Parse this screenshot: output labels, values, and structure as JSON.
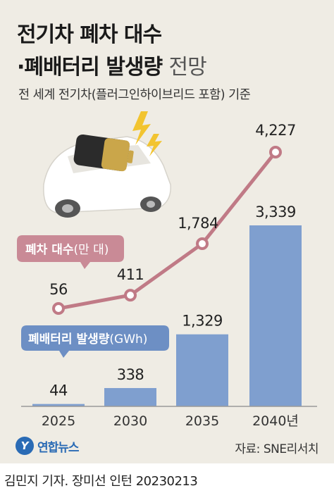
{
  "title_line1": "전기차 폐차 대수",
  "title_line2_bold": "·폐배터리 발생량",
  "title_line2_light": "전망",
  "subtitle": "전 세계 전기차(플러그인하이브리드 포함) 기준",
  "chart_data": {
    "type": "bar+line",
    "categories": [
      "2025",
      "2030",
      "2035",
      "2040년"
    ],
    "series": [
      {
        "name": "폐배터리 발생량(GWh)",
        "type": "bar",
        "values": [
          44,
          338,
          1329,
          3339
        ],
        "labels": [
          "44",
          "338",
          "1,329",
          "3,339"
        ],
        "color": "#7f9fcf"
      },
      {
        "name": "폐차 대수(만 대)",
        "type": "line",
        "values": [
          56,
          411,
          1784,
          4227
        ],
        "labels": [
          "56",
          "411",
          "1,784",
          "4,227"
        ],
        "color": "#c07a86"
      }
    ],
    "legend_line": {
      "bold": "폐차 대수",
      "light": "(만 대)"
    },
    "legend_bar": {
      "bold": "폐배터리 발생량",
      "light": "(GWh)"
    }
  },
  "logo_text": "연합뉴스",
  "logo_mark": "Y",
  "source": "자료: SNE리서치",
  "credit": "김민지 기자. 장미선 인턴  20230213",
  "colors": {
    "background": "#efece4",
    "bar": "#7f9fcf",
    "line": "#c07a86",
    "line_legend_bg": "#c98a96",
    "bar_legend_bg": "#6d8fc4"
  }
}
